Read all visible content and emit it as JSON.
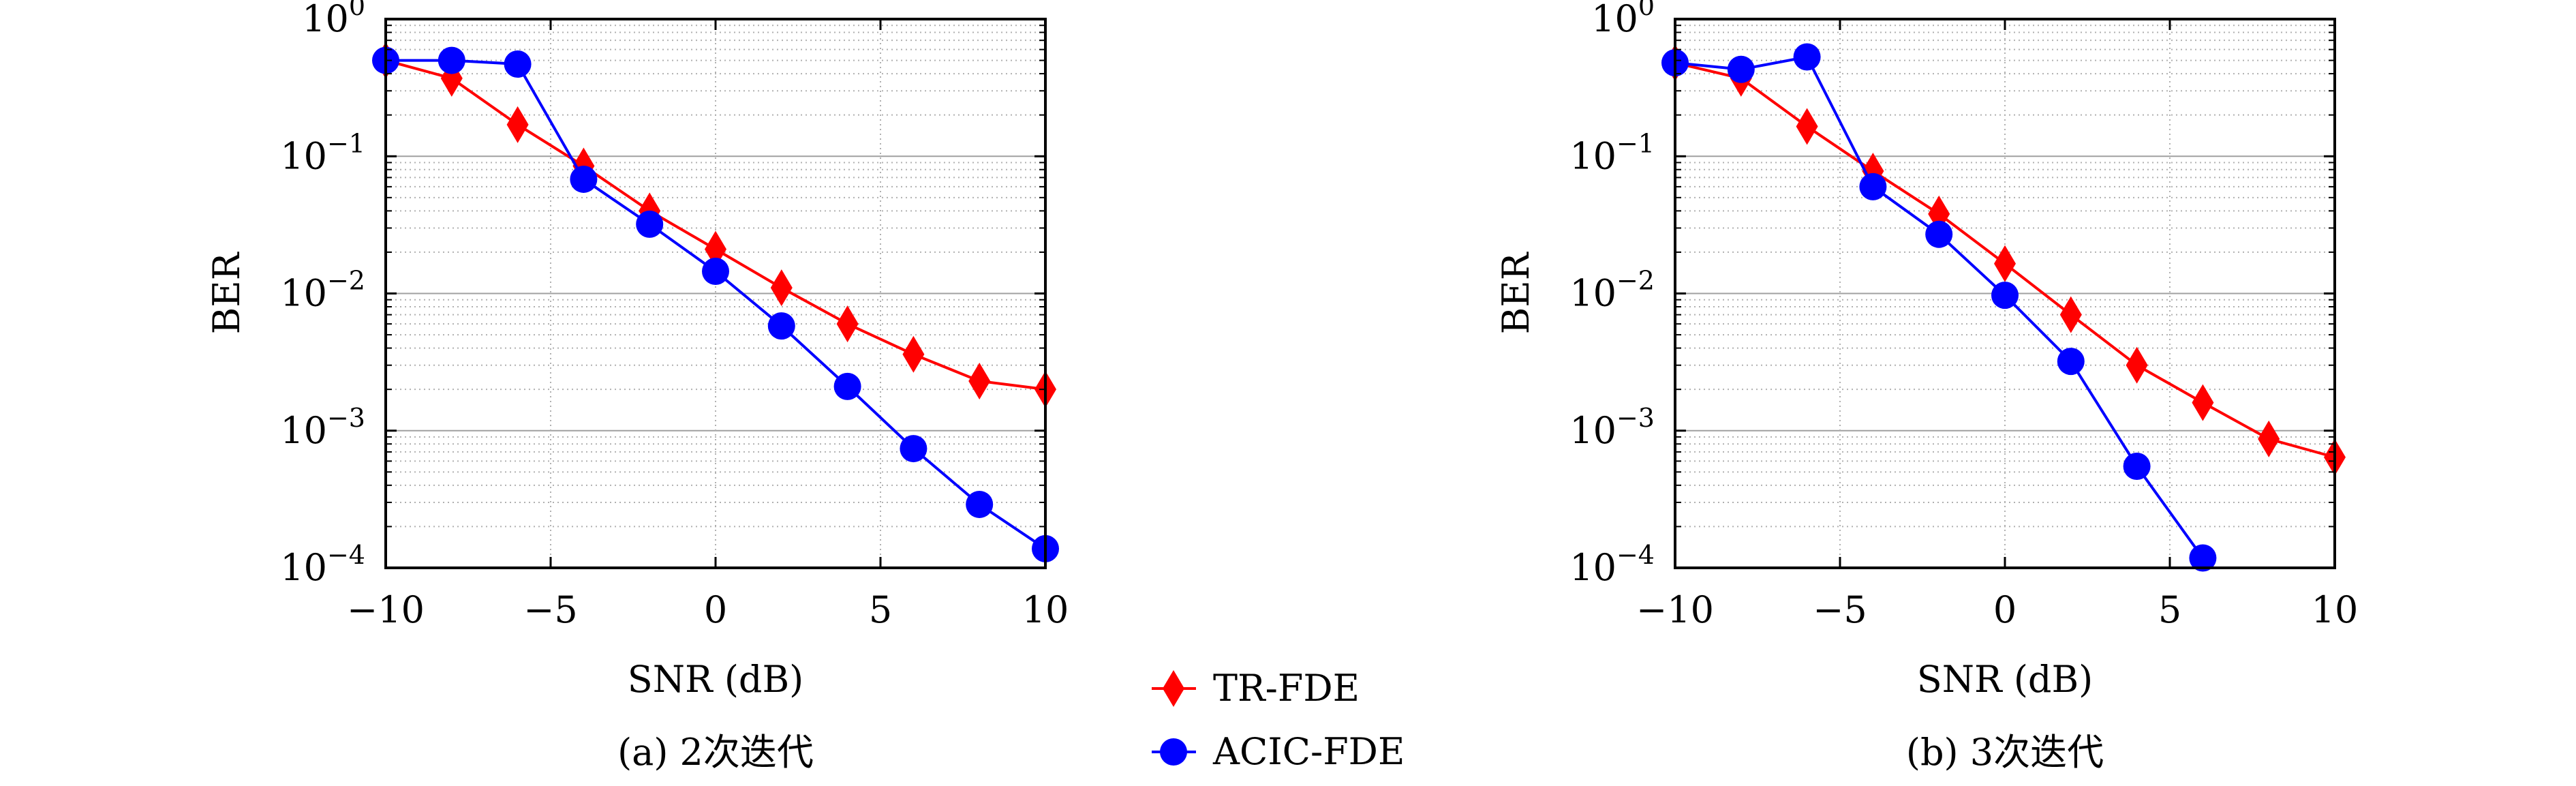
{
  "chart_data": [
    {
      "type": "line",
      "caption": "(a) 2次迭代",
      "xlabel": "SNR (dB)",
      "ylabel": "BER",
      "xlim": [
        -10,
        10
      ],
      "ylim": [
        0.0001,
        1
      ],
      "yscale": "log",
      "xticks": [
        -10,
        -5,
        0,
        5,
        10
      ],
      "xtick_labels": [
        "−10",
        "−5",
        "0",
        "5",
        "10"
      ],
      "yticks": [
        1,
        0.1,
        0.01,
        0.001,
        0.0001
      ],
      "ytick_labels": [
        {
          "base": "10",
          "exp": "0"
        },
        {
          "base": "10",
          "exp": "−1"
        },
        {
          "base": "10",
          "exp": "−2"
        },
        {
          "base": "10",
          "exp": "−3"
        },
        {
          "base": "10",
          "exp": "−4"
        }
      ],
      "grid": true,
      "series": [
        {
          "name": "TR-FDE",
          "color": "#ff0000",
          "marker": "diamond",
          "x": [
            -10,
            -8,
            -6,
            -4,
            -2,
            0,
            2,
            4,
            6,
            8,
            10
          ],
          "y": [
            0.5,
            0.37,
            0.17,
            0.085,
            0.04,
            0.021,
            0.011,
            0.006,
            0.0036,
            0.0023,
            0.002
          ]
        },
        {
          "name": "ACIC-FDE",
          "color": "#0000ff",
          "marker": "circle",
          "x": [
            -10,
            -8,
            -6,
            -4,
            -2,
            0,
            2,
            4,
            6,
            8,
            10
          ],
          "y": [
            0.5,
            0.5,
            0.47,
            0.068,
            0.032,
            0.0145,
            0.0058,
            0.0021,
            0.00074,
            0.00029,
            0.000138
          ]
        }
      ]
    },
    {
      "type": "line",
      "caption": "(b) 3次迭代",
      "xlabel": "SNR (dB)",
      "ylabel": "BER",
      "xlim": [
        -10,
        10
      ],
      "ylim": [
        0.0001,
        1
      ],
      "yscale": "log",
      "xticks": [
        -10,
        -5,
        0,
        5,
        10
      ],
      "xtick_labels": [
        "−10",
        "−5",
        "0",
        "5",
        "10"
      ],
      "yticks": [
        1,
        0.1,
        0.01,
        0.001,
        0.0001
      ],
      "ytick_labels": [
        {
          "base": "10",
          "exp": "0"
        },
        {
          "base": "10",
          "exp": "−1"
        },
        {
          "base": "10",
          "exp": "−2"
        },
        {
          "base": "10",
          "exp": "−3"
        },
        {
          "base": "10",
          "exp": "−4"
        }
      ],
      "grid": true,
      "series": [
        {
          "name": "TR-FDE",
          "color": "#ff0000",
          "marker": "diamond",
          "x": [
            -10,
            -8,
            -6,
            -4,
            -2,
            0,
            2,
            4,
            6,
            8,
            10
          ],
          "y": [
            0.48,
            0.37,
            0.165,
            0.078,
            0.038,
            0.0165,
            0.007,
            0.003,
            0.0016,
            0.00087,
            0.00064
          ]
        },
        {
          "name": "ACIC-FDE",
          "color": "#0000ff",
          "marker": "circle",
          "x": [
            -10,
            -8,
            -6,
            -4,
            -2,
            0,
            2,
            4,
            6
          ],
          "y": [
            0.48,
            0.43,
            0.53,
            0.06,
            0.027,
            0.0097,
            0.0032,
            0.00055,
            0.000118
          ]
        }
      ]
    }
  ],
  "legend": {
    "placement": "bottom-center",
    "entries": [
      {
        "label": "TR-FDE",
        "color": "#ff0000",
        "marker": "diamond"
      },
      {
        "label": "ACIC-FDE",
        "color": "#0000ff",
        "marker": "circle"
      }
    ]
  }
}
